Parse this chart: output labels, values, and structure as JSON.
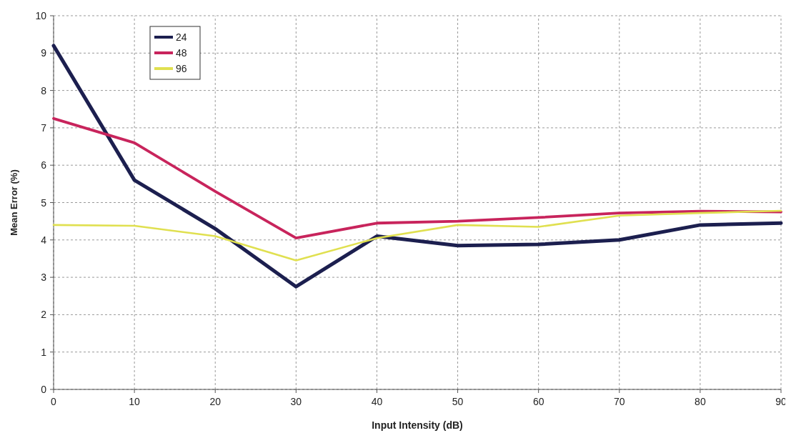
{
  "chart_data": {
    "type": "line",
    "xlabel": "Input Intensity (dB)",
    "ylabel": "Mean Error (%)",
    "x": [
      0,
      10,
      20,
      30,
      40,
      50,
      60,
      70,
      80,
      90
    ],
    "series": [
      {
        "name": "24",
        "color": "#1c1f4f",
        "values": [
          9.2,
          5.6,
          4.3,
          2.75,
          4.1,
          3.85,
          3.88,
          4.0,
          4.4,
          4.45
        ]
      },
      {
        "name": "48",
        "color": "#c8245c",
        "values": [
          7.25,
          6.6,
          5.3,
          4.05,
          4.45,
          4.5,
          4.6,
          4.72,
          4.77,
          4.75
        ]
      },
      {
        "name": "96",
        "color": "#e0e050",
        "values": [
          4.4,
          4.38,
          4.1,
          3.45,
          4.05,
          4.4,
          4.35,
          4.65,
          4.72,
          4.78
        ]
      }
    ],
    "xlim": [
      0,
      90
    ],
    "xticks": [
      0,
      10,
      20,
      30,
      40,
      50,
      60,
      70,
      80,
      90
    ],
    "ylim": [
      0,
      10
    ],
    "yticks": [
      0,
      1,
      2,
      3,
      4,
      5,
      6,
      7,
      8,
      9,
      10
    ],
    "grid": true,
    "legend": "top left",
    "marker": "none",
    "line_style": "solid"
  }
}
